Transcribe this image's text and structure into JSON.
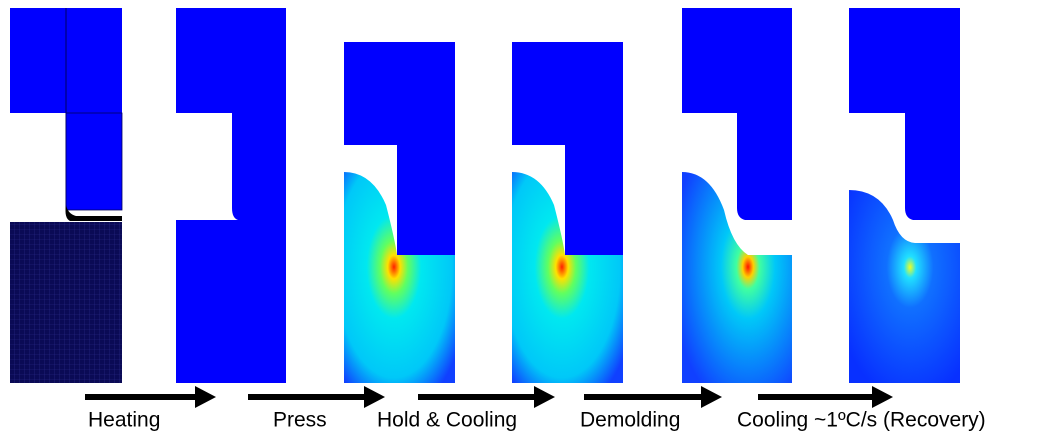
{
  "steps": [
    {
      "label": "Heating"
    },
    {
      "label": "Press"
    },
    {
      "label": "Hold & Cooling"
    },
    {
      "label": "Demolding"
    },
    {
      "label": "Cooling ~1ºC/s (Recovery)"
    }
  ]
}
